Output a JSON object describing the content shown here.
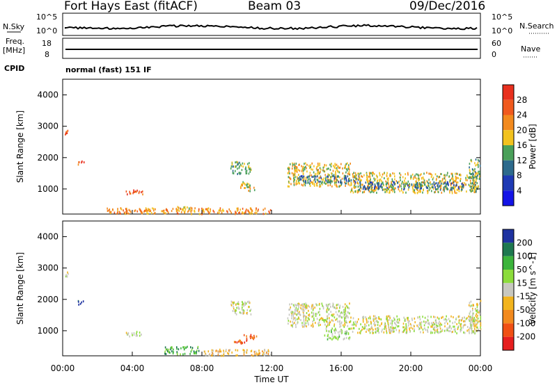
{
  "header": {
    "station": "Fort Hays East (fitACF)",
    "beam": "Beam 03",
    "date": "09/Dec/2016"
  },
  "top_panels": {
    "nsky_label": "N.Sky",
    "nsearch_label": "N.Search",
    "nsky_tick_hi": "10^5",
    "nsky_tick_lo": "10^0",
    "freq_label_1": "Freq.",
    "freq_label_2": "[MHz]",
    "freq_tick_hi": "18",
    "freq_tick_lo": "8",
    "nave_label": "Nave",
    "nave_tick_hi": "60",
    "nave_tick_lo": "0",
    "cpid_label": "CPID",
    "cpid_value": "normal (fast) 151 IF"
  },
  "power_scale": {
    "label": "Power [dB]",
    "ticks": [
      "28",
      "24",
      "20",
      "16",
      "12",
      "8",
      "4"
    ],
    "colors": [
      "#e8301e",
      "#f05a1e",
      "#f28a1e",
      "#f2c21e",
      "#4aa05a",
      "#2d6a8c",
      "#1e3ab4",
      "#1414e6"
    ]
  },
  "velocity_scale": {
    "label": "Velocity [m s^-1]",
    "ticks": [
      "200",
      "100",
      "50",
      "15",
      "-15",
      "-50",
      "-100",
      "-200"
    ],
    "colors": [
      "#1e32a0",
      "#1e7850",
      "#3cb43c",
      "#8cdc3c",
      "#c8c8c0",
      "#f2b41e",
      "#f28a1e",
      "#f05014",
      "#e61e1e"
    ],
    "ground_scatter_color": "#c8c8c0"
  },
  "chart_data": [
    {
      "type": "heatmap",
      "name": "power",
      "ylabel": "Slant Range [km]",
      "xlabel": "",
      "yticks": [
        "1000",
        "2000",
        "3000",
        "4000"
      ],
      "ylim": [
        200,
        4500
      ],
      "xlim_hours": [
        0,
        24
      ],
      "xticks": [],
      "patches": [
        {
          "t0": 0.1,
          "t1": 0.35,
          "r0": 2750,
          "r1": 2900,
          "level": 1
        },
        {
          "t0": 0.85,
          "t1": 1.2,
          "r0": 1800,
          "r1": 1950,
          "level": 1
        },
        {
          "t0": 3.6,
          "t1": 4.6,
          "r0": 850,
          "r1": 1000,
          "level": 1
        },
        {
          "t0": 6.5,
          "t1": 7.5,
          "r0": 280,
          "r1": 460,
          "level": 3
        },
        {
          "t0": 9.6,
          "t1": 10.8,
          "r0": 1500,
          "r1": 1900,
          "level": 4
        },
        {
          "t0": 10.2,
          "t1": 11.0,
          "r0": 950,
          "r1": 1250,
          "level": 3
        },
        {
          "t0": 12.9,
          "t1": 16.5,
          "r0": 1100,
          "r1": 1850,
          "level": 3
        },
        {
          "t0": 13.5,
          "t1": 17.0,
          "r0": 1200,
          "r1": 1450,
          "level": 5
        },
        {
          "t0": 16.5,
          "t1": 23.8,
          "r0": 900,
          "r1": 1550,
          "level": 3
        },
        {
          "t0": 17.0,
          "t1": 23.0,
          "r0": 1000,
          "r1": 1250,
          "level": 5
        },
        {
          "t0": 23.3,
          "t1": 24.0,
          "r0": 950,
          "r1": 2000,
          "level": 4
        },
        {
          "t0": 2.5,
          "t1": 12.0,
          "r0": 230,
          "r1": 420,
          "level": 2
        }
      ]
    },
    {
      "type": "heatmap",
      "name": "velocity",
      "ylabel": "Slant Range [km]",
      "xlabel": "Time UT",
      "yticks": [
        "1000",
        "2000",
        "3000",
        "4000"
      ],
      "ylim": [
        200,
        4500
      ],
      "xlim_hours": [
        0,
        24
      ],
      "xticks": [
        "00:00",
        "04:00",
        "08:00",
        "12:00",
        "16:00",
        "20:00",
        "00:00"
      ],
      "patches": [
        {
          "t0": 0.1,
          "t1": 0.35,
          "r0": 2750,
          "r1": 2900,
          "level": 4
        },
        {
          "t0": 0.85,
          "t1": 1.2,
          "r0": 1850,
          "r1": 2000,
          "level": 0
        },
        {
          "t0": 3.6,
          "t1": 4.6,
          "r0": 850,
          "r1": 1000,
          "level": 4
        },
        {
          "t0": 5.8,
          "t1": 7.8,
          "r0": 280,
          "r1": 520,
          "level": 2
        },
        {
          "t0": 8.0,
          "t1": 12.0,
          "r0": 230,
          "r1": 430,
          "level": 5
        },
        {
          "t0": 9.8,
          "t1": 10.6,
          "r0": 600,
          "r1": 750,
          "level": 7
        },
        {
          "t0": 10.3,
          "t1": 11.2,
          "r0": 750,
          "r1": 900,
          "level": 7
        },
        {
          "t0": 9.6,
          "t1": 10.8,
          "r0": 1550,
          "r1": 2000,
          "level": 4
        },
        {
          "t0": 12.9,
          "t1": 16.5,
          "r0": 1150,
          "r1": 1900,
          "level": 4
        },
        {
          "t0": 15.0,
          "t1": 16.5,
          "r0": 750,
          "r1": 1100,
          "level": 3
        },
        {
          "t0": 16.5,
          "t1": 23.8,
          "r0": 950,
          "r1": 1500,
          "level": 4
        },
        {
          "t0": 23.3,
          "t1": 24.0,
          "r0": 950,
          "r1": 2000,
          "level": 4
        }
      ]
    }
  ]
}
